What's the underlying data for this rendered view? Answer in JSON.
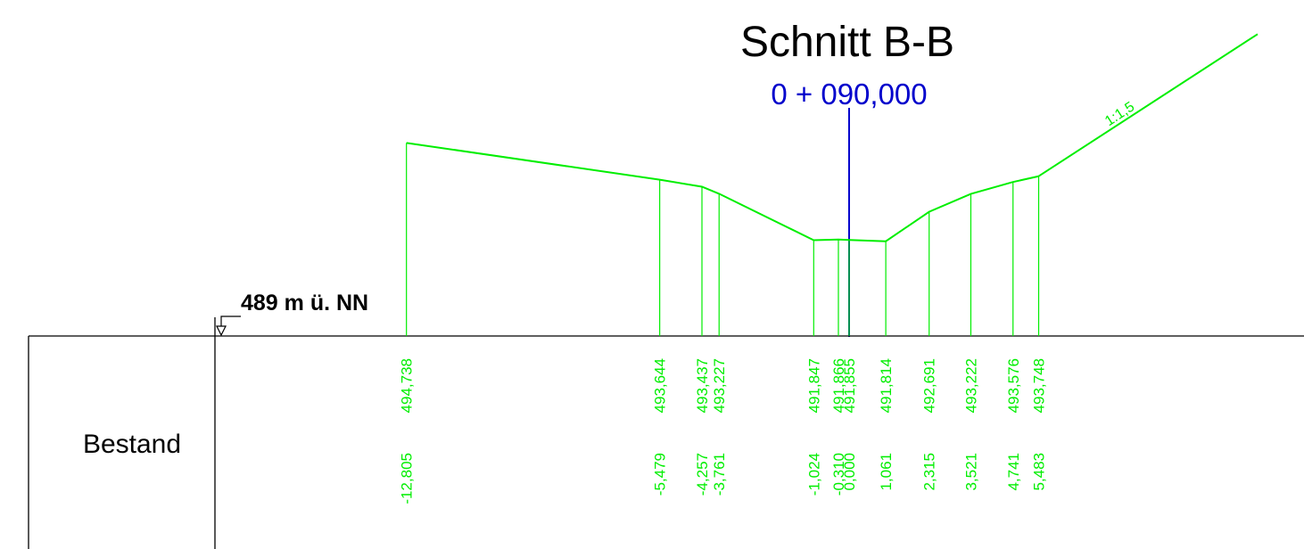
{
  "title": "Schnitt B-B",
  "station": "0 + 090,000",
  "datum_label": "489 m ü. NN",
  "datum_elevation": 489,
  "row_label": "Bestand",
  "slope_label": "1:1,5",
  "colors": {
    "terrain": "#00ee00",
    "axis": "#0000cc",
    "frame": "#000000",
    "background": "#ffffff"
  },
  "chart_data": {
    "type": "line",
    "points": [
      {
        "offset": "-12,805",
        "elevation": "494,738",
        "x": -12.805,
        "y": 494.738
      },
      {
        "offset": "-5,479",
        "elevation": "493,644",
        "x": -5.479,
        "y": 493.644
      },
      {
        "offset": "-4,257",
        "elevation": "493,437",
        "x": -4.257,
        "y": 493.437
      },
      {
        "offset": "-3,761",
        "elevation": "493,227",
        "x": -3.761,
        "y": 493.227
      },
      {
        "offset": "-1,024",
        "elevation": "491,847",
        "x": -1.024,
        "y": 491.847
      },
      {
        "offset": "-0,310",
        "elevation": "491,866",
        "x": -0.31,
        "y": 491.866
      },
      {
        "offset": "0,000",
        "elevation": "491,855",
        "x": 0.0,
        "y": 491.855
      },
      {
        "offset": "1,061",
        "elevation": "491,814",
        "x": 1.061,
        "y": 491.814
      },
      {
        "offset": "2,315",
        "elevation": "492,691",
        "x": 2.315,
        "y": 492.691
      },
      {
        "offset": "3,521",
        "elevation": "493,222",
        "x": 3.521,
        "y": 493.222
      },
      {
        "offset": "4,741",
        "elevation": "493,576",
        "x": 4.741,
        "y": 493.576
      },
      {
        "offset": "5,483",
        "elevation": "493,748",
        "x": 5.483,
        "y": 493.748
      }
    ],
    "slope_ratio": 1.5
  }
}
